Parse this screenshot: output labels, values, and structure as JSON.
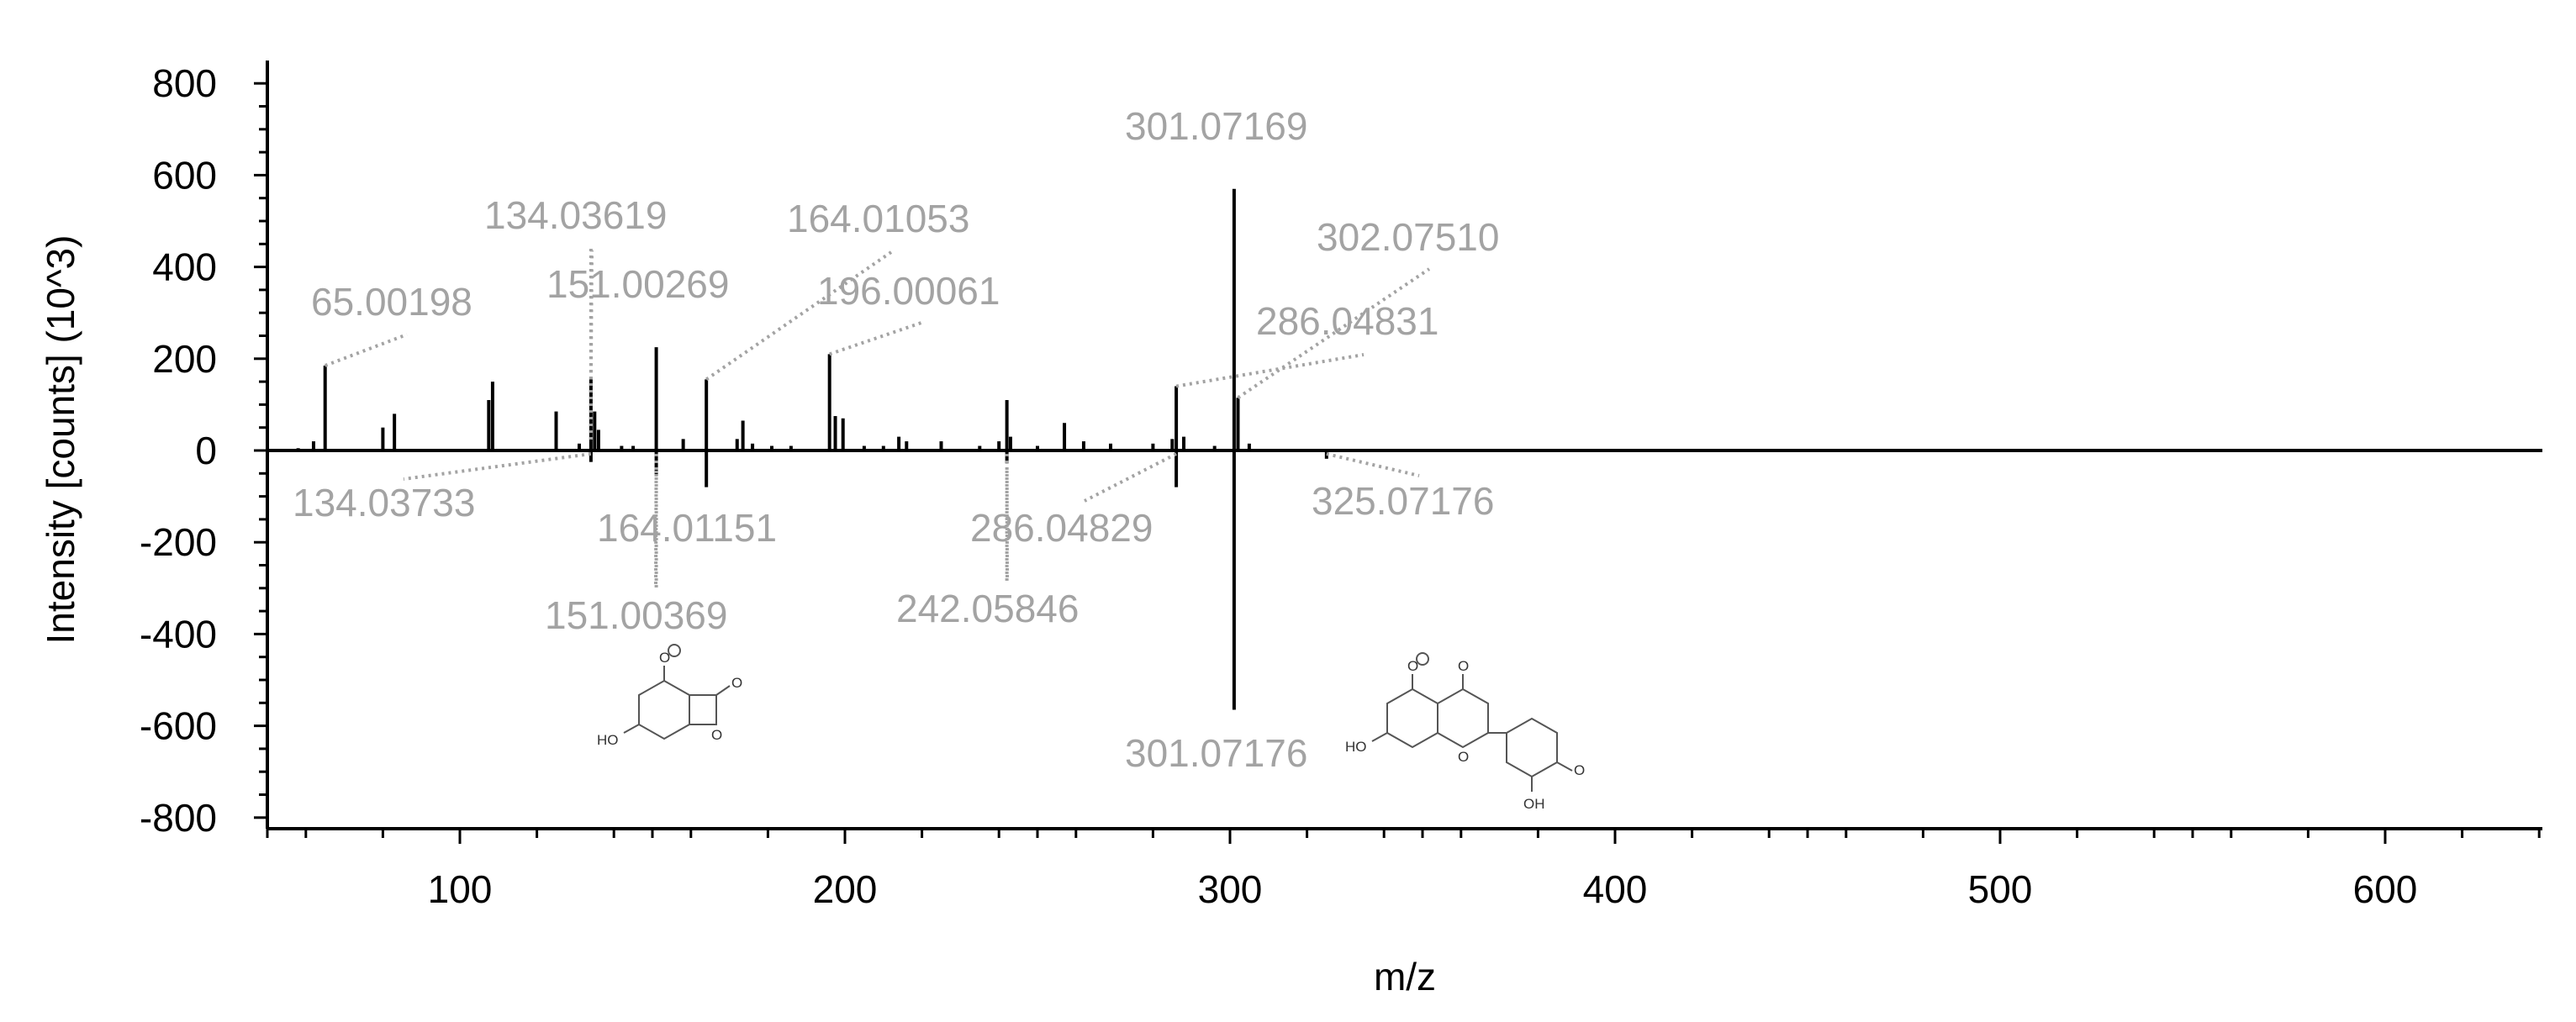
{
  "chart_data": {
    "type": "bar",
    "xlabel": "m/z",
    "ylabel": "Intensity [counts] (10^3)",
    "xlim": [
      50,
      640
    ],
    "ylim": [
      -800,
      800
    ],
    "x_ticks": [
      100,
      200,
      300,
      400,
      500,
      600
    ],
    "y_ticks": [
      800,
      600,
      400,
      200,
      0,
      -200,
      -400,
      -600,
      -800
    ],
    "grid": false,
    "legend": "none",
    "series": [
      {
        "direction": "up",
        "x": [
          58,
          62,
          65.00198,
          80,
          83,
          107.5,
          108.5,
          125,
          131,
          134.03619,
          135,
          136,
          142,
          145,
          151.00269,
          158,
          164.01053,
          172,
          173.5,
          176,
          181,
          186,
          196.00061,
          197.5,
          199.5,
          205,
          210,
          214,
          216,
          225,
          235,
          240,
          242.05846,
          243,
          250,
          257,
          262,
          269,
          280,
          285,
          286.04831,
          288,
          296,
          301.07169,
          302.0751,
          305
        ],
        "values": [
          5,
          20,
          185,
          50,
          80,
          110,
          150,
          85,
          15,
          155,
          85,
          45,
          10,
          10,
          225,
          25,
          155,
          25,
          65,
          15,
          10,
          10,
          210,
          75,
          70,
          10,
          10,
          30,
          20,
          20,
          10,
          20,
          110,
          30,
          10,
          60,
          20,
          15,
          15,
          25,
          140,
          30,
          10,
          570,
          115,
          15
        ]
      },
      {
        "direction": "down",
        "x": [
          134.03733,
          151.00369,
          164.01151,
          242.05846,
          286.04829,
          301.07176,
          325.07176
        ],
        "values": [
          -25,
          -55,
          -80,
          -28,
          -80,
          -565,
          -18
        ]
      }
    ],
    "annotations": [
      {
        "label": "65.00198",
        "x": 65.00198,
        "y": 185
      },
      {
        "label": "134.03619",
        "x": 134.03619,
        "y": 155
      },
      {
        "label": "151.00269",
        "x": 151.00269,
        "y": 225
      },
      {
        "label": "164.01053",
        "x": 164.01053,
        "y": 155
      },
      {
        "label": "196.00061",
        "x": 196.00061,
        "y": 210
      },
      {
        "label": "301.07169",
        "x": 301.07169,
        "y": 570
      },
      {
        "label": "302.07510",
        "x": 302.0751,
        "y": 115
      },
      {
        "label": "286.04831",
        "x": 286.04831,
        "y": 140
      },
      {
        "label": "134.03733",
        "x": 134.03733,
        "y": -25
      },
      {
        "label": "164.01151",
        "x": 164.01151,
        "y": -80
      },
      {
        "label": "151.00369",
        "x": 151.00369,
        "y": -55
      },
      {
        "label": "242.05846",
        "x": 242.05846,
        "y": -28
      },
      {
        "label": "286.04829",
        "x": 286.04829,
        "y": -80
      },
      {
        "label": "325.07176",
        "x": 325.07176,
        "y": -18
      },
      {
        "label": "301.07176",
        "x": 301.07176,
        "y": -565
      }
    ],
    "structures": [
      {
        "name": "fragment-structure",
        "atoms": [
          "O",
          "O",
          "O",
          "HO"
        ]
      },
      {
        "name": "precursor-structure",
        "atoms": [
          "O",
          "O",
          "O",
          "HO",
          "OH"
        ]
      }
    ]
  }
}
